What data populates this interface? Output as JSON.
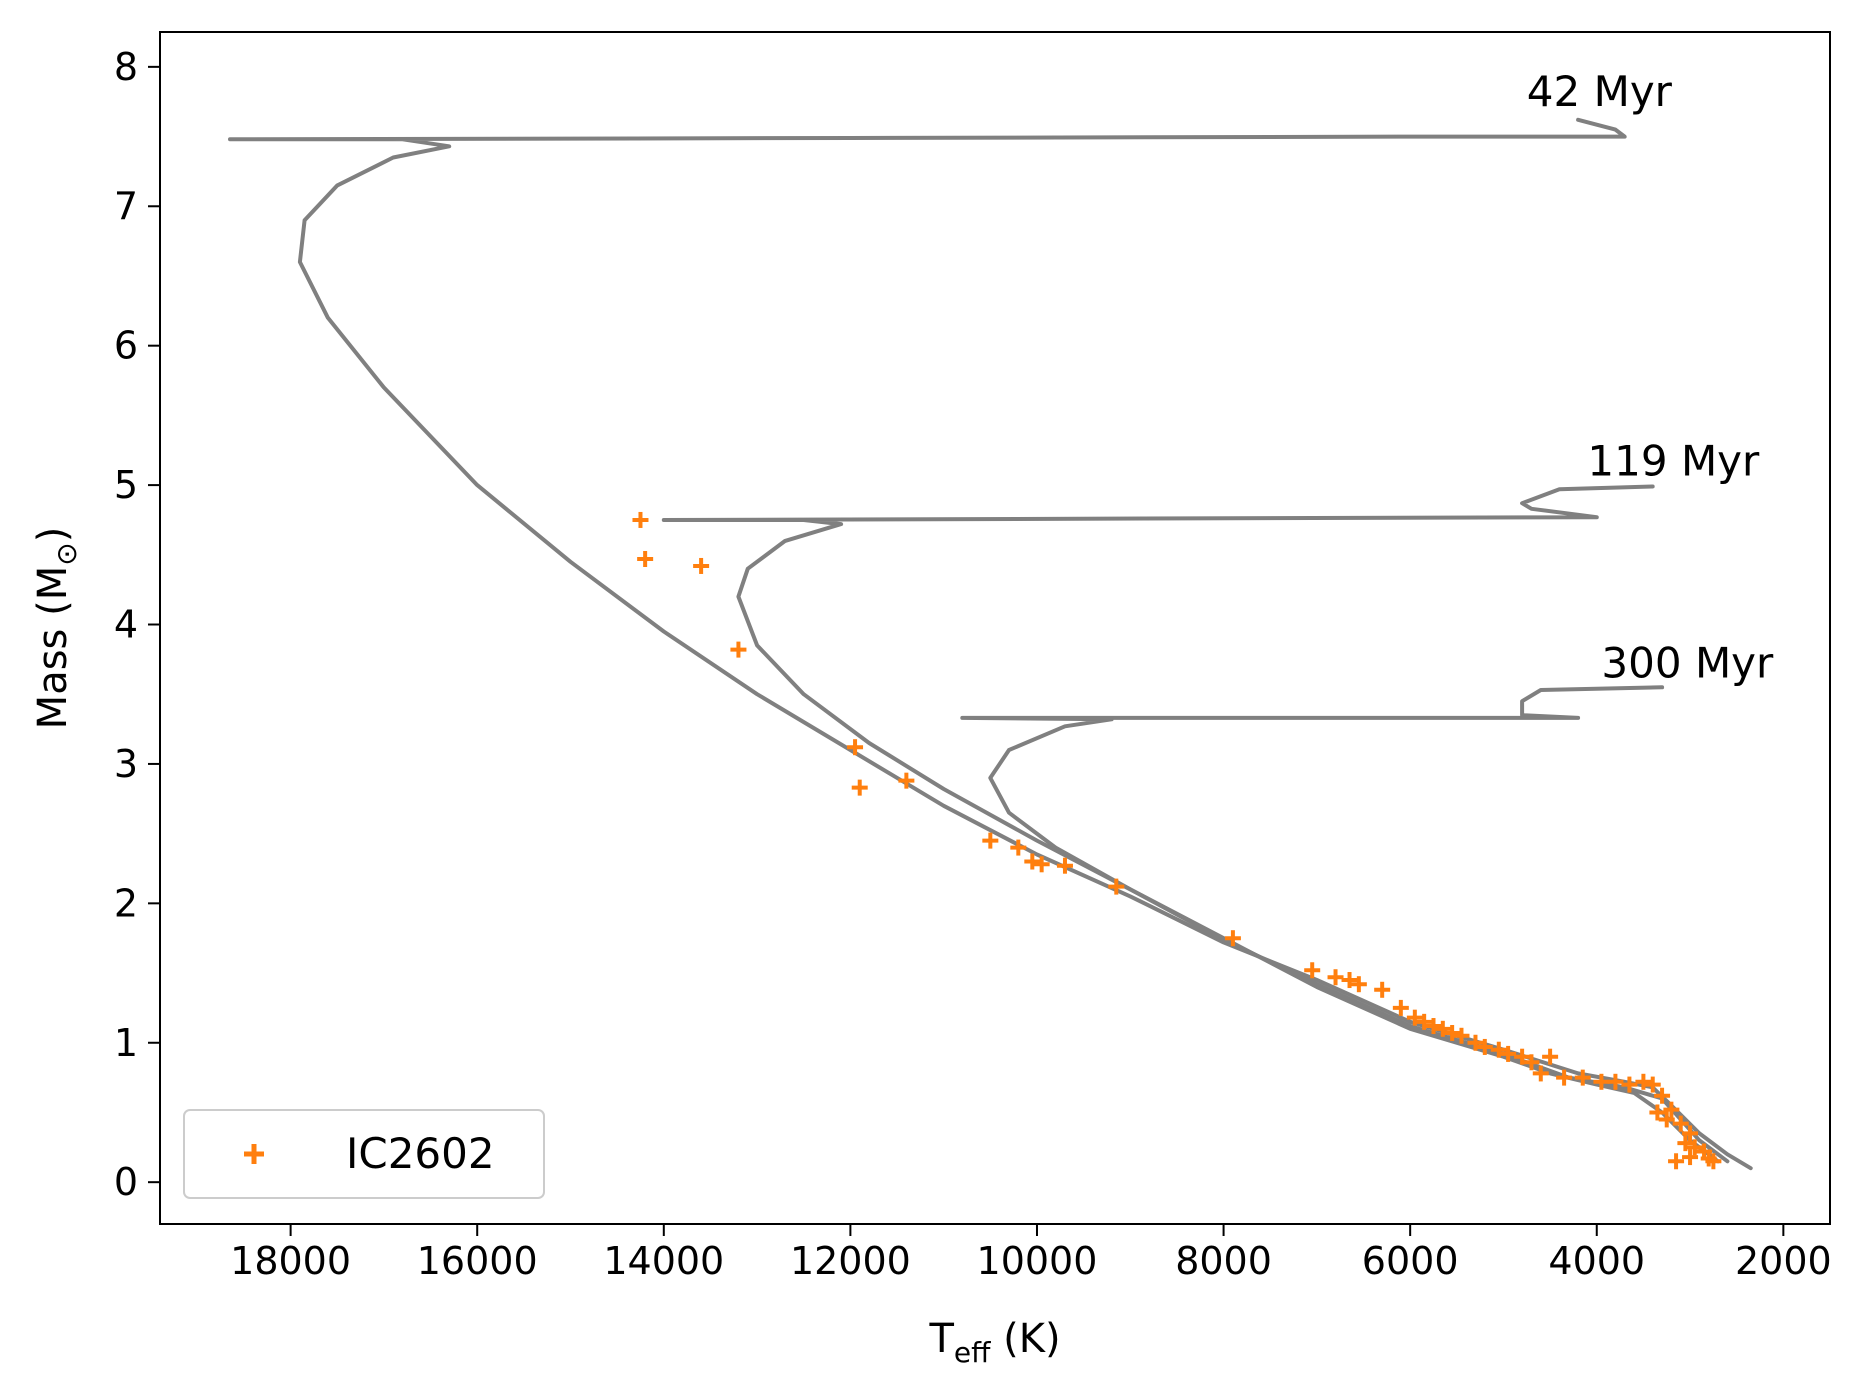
{
  "chart_data": {
    "type": "line",
    "xlabel": {
      "main": "T",
      "sub": "eff",
      "rest": " (K)"
    },
    "ylabel": {
      "main": "Mass (M",
      "sub": "⊙",
      "rest": ")"
    },
    "xlim": [
      19400,
      1500
    ],
    "ylim": [
      -0.3,
      8.25
    ],
    "x_ticks": [
      18000,
      16000,
      14000,
      12000,
      10000,
      8000,
      6000,
      4000,
      2000
    ],
    "y_ticks": [
      0,
      1,
      2,
      3,
      4,
      5,
      6,
      7,
      8
    ],
    "colors": {
      "isochrone": "#808080",
      "scatter": "#ff7f0e"
    },
    "grid": false,
    "legend": {
      "placement": "lower-left",
      "entries": [
        "IC2602"
      ]
    },
    "isochrones": [
      {
        "label": "42 Myr",
        "points": [
          [
            2350,
            0.1
          ],
          [
            2600,
            0.2
          ],
          [
            2900,
            0.35
          ],
          [
            3200,
            0.55
          ],
          [
            3400,
            0.68
          ],
          [
            3700,
            0.72
          ],
          [
            4200,
            0.78
          ],
          [
            5000,
            0.95
          ],
          [
            6000,
            1.15
          ],
          [
            7000,
            1.45
          ],
          [
            8000,
            1.72
          ],
          [
            9000,
            2.05
          ],
          [
            10000,
            2.35
          ],
          [
            11000,
            2.7
          ],
          [
            12000,
            3.1
          ],
          [
            13000,
            3.5
          ],
          [
            14000,
            3.95
          ],
          [
            15000,
            4.45
          ],
          [
            16000,
            5.0
          ],
          [
            17000,
            5.7
          ],
          [
            17600,
            6.2
          ],
          [
            17900,
            6.6
          ],
          [
            17850,
            6.9
          ],
          [
            17500,
            7.15
          ],
          [
            16900,
            7.35
          ],
          [
            16300,
            7.43
          ],
          [
            16800,
            7.48
          ],
          [
            18650,
            7.48
          ],
          [
            12000,
            7.49
          ],
          [
            6000,
            7.5
          ],
          [
            3700,
            7.5
          ],
          [
            3800,
            7.55
          ],
          [
            4200,
            7.62
          ]
        ]
      },
      {
        "label": "119 Myr",
        "points": [
          [
            2600,
            0.15
          ],
          [
            2900,
            0.3
          ],
          [
            3100,
            0.45
          ],
          [
            3300,
            0.6
          ],
          [
            3700,
            0.68
          ],
          [
            4300,
            0.75
          ],
          [
            5000,
            0.92
          ],
          [
            6000,
            1.12
          ],
          [
            7000,
            1.42
          ],
          [
            8000,
            1.74
          ],
          [
            9000,
            2.1
          ],
          [
            10000,
            2.45
          ],
          [
            11000,
            2.82
          ],
          [
            11800,
            3.15
          ],
          [
            12500,
            3.5
          ],
          [
            13000,
            3.85
          ],
          [
            13200,
            4.2
          ],
          [
            13100,
            4.4
          ],
          [
            12700,
            4.6
          ],
          [
            12100,
            4.72
          ],
          [
            12500,
            4.75
          ],
          [
            14000,
            4.75
          ],
          [
            4000,
            4.77
          ],
          [
            4700,
            4.83
          ],
          [
            4800,
            4.87
          ],
          [
            4400,
            4.97
          ],
          [
            3400,
            4.99
          ]
        ]
      },
      {
        "label": "300 Myr",
        "points": [
          [
            2700,
            0.15
          ],
          [
            3000,
            0.3
          ],
          [
            3300,
            0.5
          ],
          [
            3600,
            0.64
          ],
          [
            4000,
            0.7
          ],
          [
            4500,
            0.78
          ],
          [
            5000,
            0.9
          ],
          [
            6000,
            1.1
          ],
          [
            7000,
            1.4
          ],
          [
            8000,
            1.75
          ],
          [
            9000,
            2.1
          ],
          [
            9800,
            2.4
          ],
          [
            10300,
            2.65
          ],
          [
            10500,
            2.9
          ],
          [
            10300,
            3.1
          ],
          [
            9700,
            3.27
          ],
          [
            9200,
            3.32
          ],
          [
            10800,
            3.33
          ],
          [
            4200,
            3.33
          ],
          [
            4800,
            3.35
          ],
          [
            4800,
            3.45
          ],
          [
            4600,
            3.53
          ],
          [
            3300,
            3.55
          ]
        ]
      }
    ],
    "annotations": [
      {
        "text": "42 Myr",
        "x": 4750,
        "y": 7.72
      },
      {
        "text": "119 Myr",
        "x": 4100,
        "y": 5.07
      },
      {
        "text": "300 Myr",
        "x": 3950,
        "y": 3.62
      }
    ],
    "scatter": {
      "name": "IC2602",
      "points": [
        [
          14250,
          4.75
        ],
        [
          14200,
          4.47
        ],
        [
          13600,
          4.42
        ],
        [
          13200,
          3.82
        ],
        [
          11950,
          3.12
        ],
        [
          11900,
          2.83
        ],
        [
          11400,
          2.88
        ],
        [
          10500,
          2.45
        ],
        [
          10200,
          2.4
        ],
        [
          10050,
          2.3
        ],
        [
          9950,
          2.28
        ],
        [
          9700,
          2.27
        ],
        [
          9150,
          2.12
        ],
        [
          7900,
          1.75
        ],
        [
          7050,
          1.52
        ],
        [
          6800,
          1.47
        ],
        [
          6650,
          1.45
        ],
        [
          6550,
          1.42
        ],
        [
          6300,
          1.38
        ],
        [
          6100,
          1.25
        ],
        [
          5950,
          1.18
        ],
        [
          5850,
          1.15
        ],
        [
          5750,
          1.12
        ],
        [
          5650,
          1.1
        ],
        [
          5550,
          1.07
        ],
        [
          5450,
          1.05
        ],
        [
          5300,
          1.0
        ],
        [
          5200,
          0.97
        ],
        [
          5050,
          0.95
        ],
        [
          4950,
          0.92
        ],
        [
          4800,
          0.9
        ],
        [
          4700,
          0.86
        ],
        [
          4500,
          0.9
        ],
        [
          4600,
          0.78
        ],
        [
          4350,
          0.75
        ],
        [
          4150,
          0.75
        ],
        [
          3950,
          0.72
        ],
        [
          3800,
          0.72
        ],
        [
          3650,
          0.7
        ],
        [
          3500,
          0.72
        ],
        [
          3400,
          0.7
        ],
        [
          3300,
          0.62
        ],
        [
          3200,
          0.52
        ],
        [
          3100,
          0.42
        ],
        [
          3000,
          0.35
        ],
        [
          2950,
          0.25
        ],
        [
          2850,
          0.22
        ],
        [
          2800,
          0.17
        ],
        [
          2750,
          0.15
        ],
        [
          3150,
          0.15
        ],
        [
          3000,
          0.18
        ],
        [
          3350,
          0.5
        ],
        [
          3250,
          0.45
        ],
        [
          3050,
          0.28
        ]
      ]
    }
  }
}
